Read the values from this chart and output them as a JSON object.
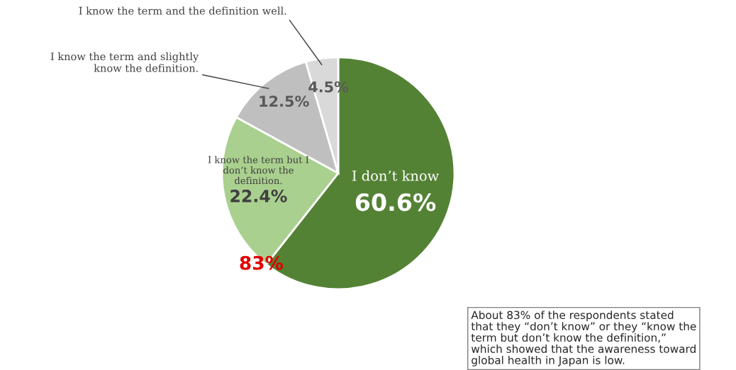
{
  "chart_data": {
    "type": "pie",
    "categories": [
      "I don’t know",
      "I know the term but I\ndon’t know the\ndefinition.",
      "I know the term and slightly\nknow the definition.",
      "I know the term and the definition well."
    ],
    "values": [
      60.6,
      22.4,
      12.5,
      4.5
    ],
    "colors": [
      "#548235",
      "#a9d08e",
      "#bfbfbf",
      "#d9d9d9"
    ],
    "value_labels": [
      "60.6%",
      "22.4%",
      "12.5%",
      "4.5%"
    ],
    "annotations": [
      "83%",
      "About 83% of the respondents stated\nthat they “don’t know” or they “know the\nterm but don’t know the definition,”\nwhich showed that the awareness toward\nglobal health in Japan is low."
    ]
  }
}
